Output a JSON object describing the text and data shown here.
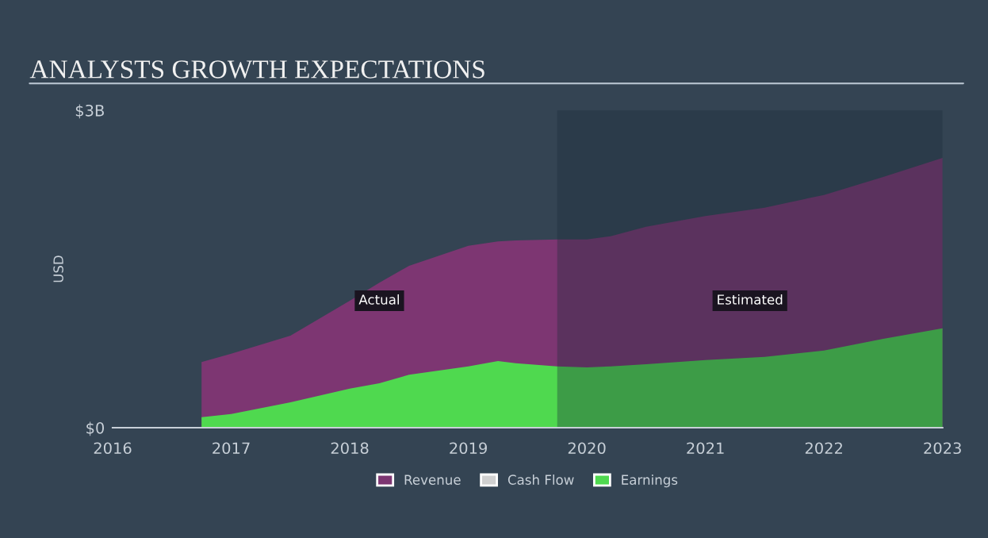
{
  "chart_data": {
    "type": "area",
    "title": "ANALYSTS GROWTH EXPECTATIONS",
    "ylabel": "USD",
    "x": [
      2016.75,
      2017,
      2017.5,
      2018,
      2018.25,
      2018.5,
      2019,
      2019.25,
      2019.4,
      2019.75,
      2020,
      2020.2,
      2020.5,
      2021,
      2021.5,
      2022,
      2022.5,
      2023
    ],
    "series": [
      {
        "name": "Revenue",
        "color": "#7d3672",
        "values": [
          0.62,
          0.7,
          0.87,
          1.2,
          1.37,
          1.53,
          1.72,
          1.76,
          1.77,
          1.78,
          1.78,
          1.81,
          1.9,
          2.0,
          2.08,
          2.2,
          2.37,
          2.55
        ]
      },
      {
        "name": "Cash Flow",
        "color": "#d0d0d0",
        "values": [
          null,
          null,
          null,
          null,
          null,
          null,
          null,
          null,
          null,
          null,
          null,
          null,
          null,
          null,
          null,
          null,
          null,
          null
        ]
      },
      {
        "name": "Earnings",
        "color": "#4fd94f",
        "values": [
          0.1,
          0.13,
          0.24,
          0.37,
          0.42,
          0.5,
          0.58,
          0.63,
          0.61,
          0.58,
          0.57,
          0.58,
          0.6,
          0.64,
          0.67,
          0.73,
          0.84,
          0.94
        ]
      }
    ],
    "xlim": [
      2016,
      2023
    ],
    "xticks": [
      2016,
      2017,
      2018,
      2019,
      2020,
      2021,
      2022,
      2023
    ],
    "ylim": [
      0,
      3
    ],
    "yticks": [
      {
        "value": 0,
        "label": "$0"
      },
      {
        "value": 3,
        "label": "$3B"
      }
    ],
    "annotations": [
      "Actual"
    ],
    "bands": [
      {
        "axis": "x",
        "from": 2019.75,
        "to": 2023,
        "color": "#1e2a38",
        "label": "Estimated"
      }
    ],
    "grid": false,
    "legend": "bottom"
  }
}
